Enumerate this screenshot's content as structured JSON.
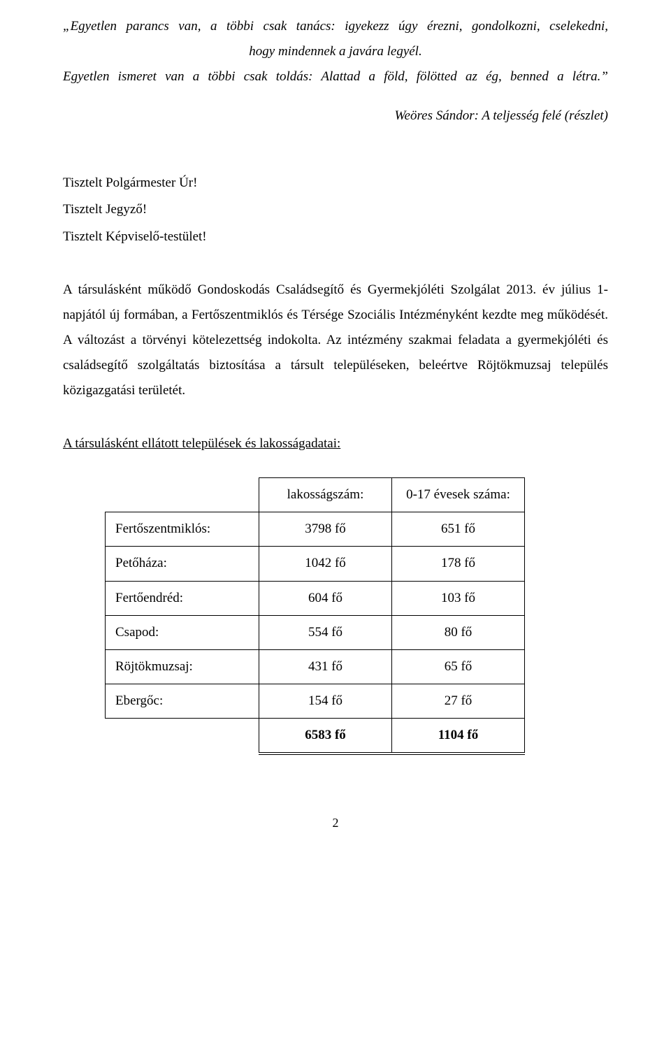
{
  "quote": {
    "line1": "„Egyetlen parancs van, a többi csak tanács: igyekezz úgy érezni, gondolkozni, cselekedni,",
    "line2": "hogy mindennek a javára legyél.",
    "line3": "Egyetlen ismeret van a többi csak toldás: Alattad a föld, fölötted az ég, benned a létra.”",
    "attribution": "Weöres Sándor: A teljesség felé (részlet)"
  },
  "salutation": {
    "line1": "Tisztelt Polgármester Úr!",
    "line2": "Tisztelt Jegyző!",
    "line3": "Tisztelt Képviselő-testület!"
  },
  "paragraph": "A társulásként működő Gondoskodás Családsegítő és Gyermekjóléti Szolgálat 2013. év július 1-napjától új formában, a Fertőszentmiklós és Térsége Szociális Intézményként kezdte meg működését. A változást a törvényi kötelezettség indokolta. Az intézmény szakmai feladata a gyermekjóléti és családsegítő szolgáltatás biztosítása a társult településeken, beleértve Röjtökmuzsaj település közigazgatási területét.",
  "section_heading": " A társulásként ellátott települések és lakosságadatai:",
  "table": {
    "header": {
      "col1": "",
      "col2": "lakosságszám:",
      "col3": "0-17 évesek száma:"
    },
    "rows": [
      {
        "label": "Fertőszentmiklós:",
        "pop": "3798 fő",
        "youth": "651 fő"
      },
      {
        "label": "Petőháza:",
        "pop": "1042 fő",
        "youth": "178 fő"
      },
      {
        "label": "Fertőendréd:",
        "pop": "604 fő",
        "youth": "103 fő"
      },
      {
        "label": "Csapod:",
        "pop": "554 fő",
        "youth": "80 fő"
      },
      {
        "label": "Röjtökmuzsaj:",
        "pop": "431 fő",
        "youth": "65 fő"
      },
      {
        "label": "Ebergőc:",
        "pop": "154 fő",
        "youth": "27 fő"
      }
    ],
    "total": {
      "label": "",
      "pop": "6583 fő",
      "youth": "1104 fő"
    }
  },
  "page_number": "2"
}
